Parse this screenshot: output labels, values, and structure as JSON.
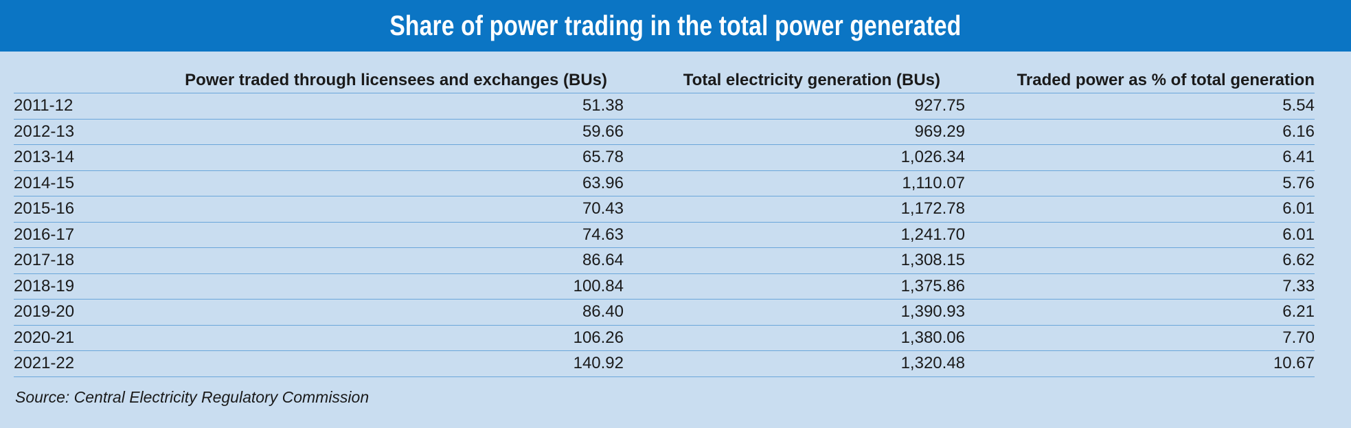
{
  "title": "Share of power trading in the total power generated",
  "source": "Source: Central Electricity Regulatory Commission",
  "colors": {
    "header_bg": "#0b75c4",
    "panel_bg": "#c9ddf0",
    "rule": "#6aa6da",
    "title_text": "#ffffff"
  },
  "chart_data": {
    "type": "table",
    "title": "Share of power trading in the total power generated",
    "columns": [
      "",
      "Power traded through licensees and exchanges (BUs)",
      "Total electricity generation (BUs)",
      "Traded power as % of total generation"
    ],
    "rows": [
      [
        "2011-12",
        "51.38",
        "927.75",
        "5.54"
      ],
      [
        "2012-13",
        "59.66",
        "969.29",
        "6.16"
      ],
      [
        "2013-14",
        "65.78",
        "1,026.34",
        "6.41"
      ],
      [
        "2014-15",
        "63.96",
        "1,110.07",
        "5.76"
      ],
      [
        "2015-16",
        "70.43",
        "1,172.78",
        "6.01"
      ],
      [
        "2016-17",
        "74.63",
        "1,241.70",
        "6.01"
      ],
      [
        "2017-18",
        "86.64",
        "1,308.15",
        "6.62"
      ],
      [
        "2018-19",
        "100.84",
        "1,375.86",
        "7.33"
      ],
      [
        "2019-20",
        "86.40",
        "1,390.93",
        "6.21"
      ],
      [
        "2020-21",
        "106.26",
        "1,380.06",
        "7.70"
      ],
      [
        "2021-22",
        "140.92",
        "1,320.48",
        "10.67"
      ]
    ],
    "source": "Source: Central Electricity Regulatory Commission"
  }
}
